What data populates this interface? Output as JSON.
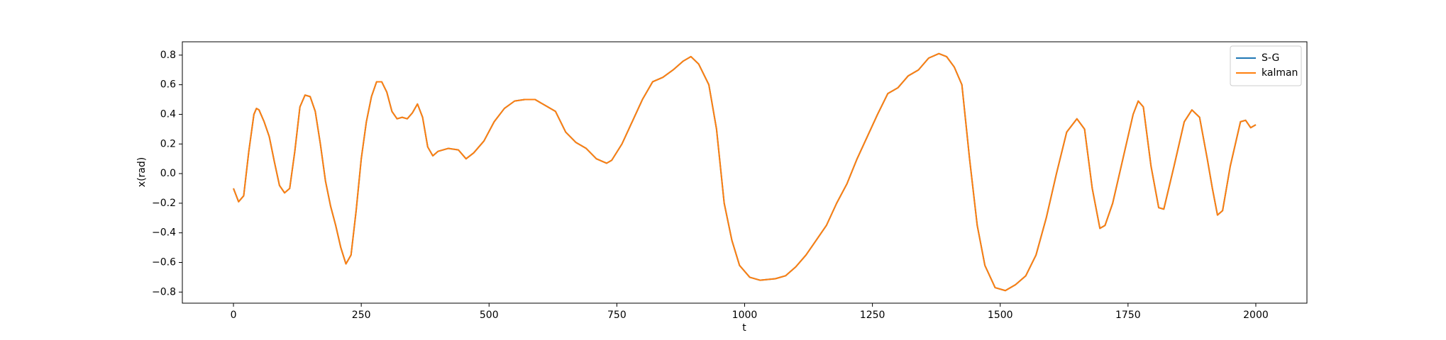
{
  "chart_data": {
    "type": "line",
    "xlabel": "t",
    "ylabel": "x(rad)",
    "x": [
      0,
      10,
      20,
      30,
      40,
      45,
      50,
      60,
      70,
      80,
      90,
      100,
      110,
      120,
      130,
      140,
      150,
      160,
      170,
      180,
      190,
      200,
      210,
      220,
      230,
      240,
      250,
      260,
      270,
      280,
      290,
      300,
      310,
      320,
      330,
      340,
      350,
      360,
      370,
      380,
      390,
      400,
      420,
      440,
      455,
      470,
      490,
      510,
      530,
      550,
      570,
      590,
      610,
      630,
      650,
      670,
      690,
      710,
      730,
      740,
      760,
      780,
      800,
      820,
      840,
      860,
      880,
      895,
      910,
      930,
      945,
      960,
      975,
      990,
      1010,
      1030,
      1060,
      1080,
      1100,
      1120,
      1140,
      1160,
      1180,
      1200,
      1220,
      1240,
      1260,
      1280,
      1300,
      1320,
      1340,
      1360,
      1380,
      1395,
      1410,
      1425,
      1440,
      1455,
      1470,
      1490,
      1510,
      1530,
      1550,
      1570,
      1590,
      1610,
      1630,
      1650,
      1665,
      1680,
      1695,
      1705,
      1720,
      1740,
      1760,
      1770,
      1780,
      1795,
      1810,
      1820,
      1840,
      1860,
      1875,
      1890,
      1905,
      1915,
      1925,
      1935,
      1950,
      1970,
      1980,
      1990,
      2000
    ],
    "series": [
      {
        "name": "S-G",
        "color": "#1f77b4",
        "values": [
          -0.1,
          -0.19,
          -0.15,
          0.15,
          0.4,
          0.44,
          0.43,
          0.35,
          0.25,
          0.08,
          -0.08,
          -0.13,
          -0.1,
          0.15,
          0.45,
          0.53,
          0.52,
          0.42,
          0.2,
          -0.05,
          -0.22,
          -0.35,
          -0.5,
          -0.61,
          -0.55,
          -0.25,
          0.1,
          0.35,
          0.52,
          0.62,
          0.62,
          0.55,
          0.42,
          0.37,
          0.38,
          0.37,
          0.41,
          0.47,
          0.38,
          0.18,
          0.12,
          0.15,
          0.17,
          0.16,
          0.1,
          0.14,
          0.22,
          0.35,
          0.44,
          0.49,
          0.5,
          0.5,
          0.46,
          0.42,
          0.28,
          0.21,
          0.17,
          0.1,
          0.07,
          0.09,
          0.2,
          0.35,
          0.5,
          0.62,
          0.65,
          0.7,
          0.76,
          0.79,
          0.74,
          0.6,
          0.3,
          -0.2,
          -0.45,
          -0.62,
          -0.7,
          -0.72,
          -0.71,
          -0.69,
          -0.63,
          -0.55,
          -0.45,
          -0.35,
          -0.2,
          -0.07,
          0.1,
          0.25,
          0.4,
          0.54,
          0.58,
          0.66,
          0.7,
          0.78,
          0.81,
          0.79,
          0.72,
          0.6,
          0.1,
          -0.35,
          -0.62,
          -0.77,
          -0.79,
          -0.75,
          -0.69,
          -0.55,
          -0.3,
          0.0,
          0.28,
          0.37,
          0.3,
          -0.1,
          -0.37,
          -0.35,
          -0.2,
          0.1,
          0.4,
          0.49,
          0.45,
          0.05,
          -0.23,
          -0.24,
          0.05,
          0.35,
          0.43,
          0.38,
          0.1,
          -0.1,
          -0.28,
          -0.25,
          0.05,
          0.35,
          0.36,
          0.31,
          0.33
        ]
      },
      {
        "name": "kalman",
        "color": "#ff7f0e",
        "values": [
          -0.1,
          -0.19,
          -0.15,
          0.15,
          0.4,
          0.44,
          0.43,
          0.35,
          0.25,
          0.08,
          -0.08,
          -0.13,
          -0.1,
          0.15,
          0.45,
          0.53,
          0.52,
          0.42,
          0.2,
          -0.05,
          -0.22,
          -0.35,
          -0.5,
          -0.61,
          -0.55,
          -0.25,
          0.1,
          0.35,
          0.52,
          0.62,
          0.62,
          0.55,
          0.42,
          0.37,
          0.38,
          0.37,
          0.41,
          0.47,
          0.38,
          0.18,
          0.12,
          0.15,
          0.17,
          0.16,
          0.1,
          0.14,
          0.22,
          0.35,
          0.44,
          0.49,
          0.5,
          0.5,
          0.46,
          0.42,
          0.28,
          0.21,
          0.17,
          0.1,
          0.07,
          0.09,
          0.2,
          0.35,
          0.5,
          0.62,
          0.65,
          0.7,
          0.76,
          0.79,
          0.74,
          0.6,
          0.3,
          -0.2,
          -0.45,
          -0.62,
          -0.7,
          -0.72,
          -0.71,
          -0.69,
          -0.63,
          -0.55,
          -0.45,
          -0.35,
          -0.2,
          -0.07,
          0.1,
          0.25,
          0.4,
          0.54,
          0.58,
          0.66,
          0.7,
          0.78,
          0.81,
          0.79,
          0.72,
          0.6,
          0.1,
          -0.35,
          -0.62,
          -0.77,
          -0.79,
          -0.75,
          -0.69,
          -0.55,
          -0.3,
          0.0,
          0.28,
          0.37,
          0.3,
          -0.1,
          -0.37,
          -0.35,
          -0.2,
          0.1,
          0.4,
          0.49,
          0.45,
          0.05,
          -0.23,
          -0.24,
          0.05,
          0.35,
          0.43,
          0.38,
          0.1,
          -0.1,
          -0.28,
          -0.25,
          0.05,
          0.35,
          0.36,
          0.31,
          0.33
        ]
      }
    ],
    "xlim": [
      -100,
      2100
    ],
    "xticks": [
      0,
      250,
      500,
      750,
      1000,
      1250,
      1500,
      1750,
      2000
    ],
    "ylim": [
      -0.875,
      0.89
    ],
    "yticks": [
      {
        "value": -0.8,
        "label": "−0.8"
      },
      {
        "value": -0.6,
        "label": "−0.6"
      },
      {
        "value": -0.4,
        "label": "−0.4"
      },
      {
        "value": -0.2,
        "label": "−0.2"
      },
      {
        "value": 0,
        "label": "0.0"
      },
      0.2,
      0.4,
      0.6,
      0.8
    ],
    "grid": false,
    "legend": "upper right"
  }
}
